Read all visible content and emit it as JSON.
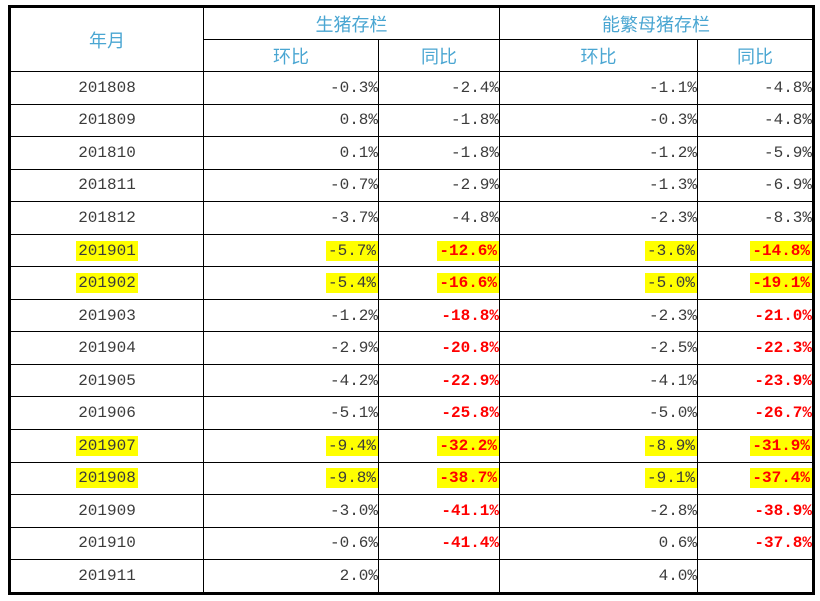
{
  "table": {
    "header": {
      "month_label": "年月",
      "group_pig": "生猪存栏",
      "group_sow": "能繁母猪存栏",
      "sub_mom": "环比",
      "sub_yoy": "同比"
    },
    "colors": {
      "header_text": "#4aa6d2",
      "body_text": "#3b3b3b",
      "yoy_negative_red": "#ff0000",
      "row_highlight": "#ffff00",
      "border": "#000000"
    },
    "rows": [
      {
        "month": "201808",
        "pig_mom": "-0.3%",
        "pig_yoy": "-2.4%",
        "sow_mom": "-1.1%",
        "sow_yoy": "-4.8%",
        "highlight": false,
        "red_yoy": false
      },
      {
        "month": "201809",
        "pig_mom": "0.8%",
        "pig_yoy": "-1.8%",
        "sow_mom": "-0.3%",
        "sow_yoy": "-4.8%",
        "highlight": false,
        "red_yoy": false
      },
      {
        "month": "201810",
        "pig_mom": "0.1%",
        "pig_yoy": "-1.8%",
        "sow_mom": "-1.2%",
        "sow_yoy": "-5.9%",
        "highlight": false,
        "red_yoy": false
      },
      {
        "month": "201811",
        "pig_mom": "-0.7%",
        "pig_yoy": "-2.9%",
        "sow_mom": "-1.3%",
        "sow_yoy": "-6.9%",
        "highlight": false,
        "red_yoy": false
      },
      {
        "month": "201812",
        "pig_mom": "-3.7%",
        "pig_yoy": "-4.8%",
        "sow_mom": "-2.3%",
        "sow_yoy": "-8.3%",
        "highlight": false,
        "red_yoy": false
      },
      {
        "month": "201901",
        "pig_mom": "-5.7%",
        "pig_yoy": "-12.6%",
        "sow_mom": "-3.6%",
        "sow_yoy": "-14.8%",
        "highlight": true,
        "red_yoy": true
      },
      {
        "month": "201902",
        "pig_mom": "-5.4%",
        "pig_yoy": "-16.6%",
        "sow_mom": "-5.0%",
        "sow_yoy": "-19.1%",
        "highlight": true,
        "red_yoy": true
      },
      {
        "month": "201903",
        "pig_mom": "-1.2%",
        "pig_yoy": "-18.8%",
        "sow_mom": "-2.3%",
        "sow_yoy": "-21.0%",
        "highlight": false,
        "red_yoy": true
      },
      {
        "month": "201904",
        "pig_mom": "-2.9%",
        "pig_yoy": "-20.8%",
        "sow_mom": "-2.5%",
        "sow_yoy": "-22.3%",
        "highlight": false,
        "red_yoy": true
      },
      {
        "month": "201905",
        "pig_mom": "-4.2%",
        "pig_yoy": "-22.9%",
        "sow_mom": "-4.1%",
        "sow_yoy": "-23.9%",
        "highlight": false,
        "red_yoy": true
      },
      {
        "month": "201906",
        "pig_mom": "-5.1%",
        "pig_yoy": "-25.8%",
        "sow_mom": "-5.0%",
        "sow_yoy": "-26.7%",
        "highlight": false,
        "red_yoy": true
      },
      {
        "month": "201907",
        "pig_mom": "-9.4%",
        "pig_yoy": "-32.2%",
        "sow_mom": "-8.9%",
        "sow_yoy": "-31.9%",
        "highlight": true,
        "red_yoy": true
      },
      {
        "month": "201908",
        "pig_mom": "-9.8%",
        "pig_yoy": "-38.7%",
        "sow_mom": "-9.1%",
        "sow_yoy": "-37.4%",
        "highlight": true,
        "red_yoy": true
      },
      {
        "month": "201909",
        "pig_mom": "-3.0%",
        "pig_yoy": "-41.1%",
        "sow_mom": "-2.8%",
        "sow_yoy": "-38.9%",
        "highlight": false,
        "red_yoy": true
      },
      {
        "month": "201910",
        "pig_mom": "-0.6%",
        "pig_yoy": "-41.4%",
        "sow_mom": "0.6%",
        "sow_yoy": "-37.8%",
        "highlight": false,
        "red_yoy": true
      },
      {
        "month": "201911",
        "pig_mom": "2.0%",
        "pig_yoy": "",
        "sow_mom": "4.0%",
        "sow_yoy": "",
        "highlight": false,
        "red_yoy": false
      }
    ]
  }
}
